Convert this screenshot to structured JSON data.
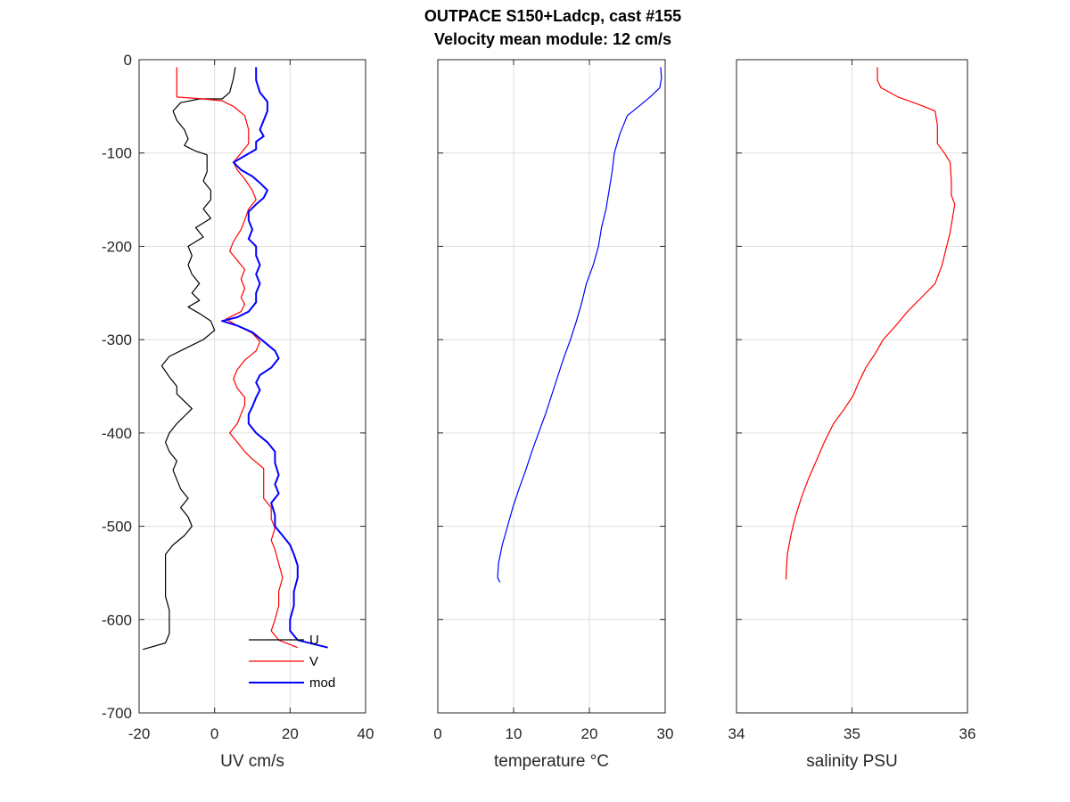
{
  "title": {
    "line1": "OUTPACE S150+Ladcp, cast #155",
    "line2": "Velocity mean module:  12 cm/s"
  },
  "chart_data": [
    {
      "type": "line",
      "xlabel": "UV cm/s",
      "ylabel": "",
      "xlim": [
        -20,
        40
      ],
      "ylim": [
        -700,
        0
      ],
      "xticks": [
        -20,
        0,
        20,
        40
      ],
      "yticks": [
        0,
        -100,
        -200,
        -300,
        -400,
        -500,
        -600,
        -700
      ],
      "grid": true,
      "legend": {
        "position": "bottom-right",
        "entries": [
          "U",
          "V",
          "mod"
        ]
      },
      "series": [
        {
          "name": "U",
          "color": "#000000",
          "width": 1.2,
          "points": [
            [
              5.5,
              -8
            ],
            [
              5,
              -20
            ],
            [
              4,
              -35
            ],
            [
              2,
              -42
            ],
            [
              -4,
              -42
            ],
            [
              -9,
              -46
            ],
            [
              -11,
              -55
            ],
            [
              -10,
              -65
            ],
            [
              -8,
              -75
            ],
            [
              -7,
              -85
            ],
            [
              -8,
              -92
            ],
            [
              -5,
              -98
            ],
            [
              -2,
              -102
            ],
            [
              -2,
              -120
            ],
            [
              -3,
              -130
            ],
            [
              -1,
              -140
            ],
            [
              -1,
              -150
            ],
            [
              -3,
              -160
            ],
            [
              -1,
              -170
            ],
            [
              -5,
              -180
            ],
            [
              -3,
              -190
            ],
            [
              -7,
              -200
            ],
            [
              -6,
              -210
            ],
            [
              -7,
              -220
            ],
            [
              -6,
              -230
            ],
            [
              -4,
              -240
            ],
            [
              -6,
              -250
            ],
            [
              -4,
              -258
            ],
            [
              -7,
              -265
            ],
            [
              -4,
              -272
            ],
            [
              -1,
              -280
            ],
            [
              0,
              -290
            ],
            [
              -3,
              -300
            ],
            [
              -8,
              -310
            ],
            [
              -12,
              -318
            ],
            [
              -14,
              -328
            ],
            [
              -12,
              -340
            ],
            [
              -10,
              -350
            ],
            [
              -10,
              -358
            ],
            [
              -8,
              -366
            ],
            [
              -6,
              -374
            ],
            [
              -8,
              -382
            ],
            [
              -10,
              -390
            ],
            [
              -12,
              -400
            ],
            [
              -13,
              -410
            ],
            [
              -12,
              -420
            ],
            [
              -10,
              -430
            ],
            [
              -11,
              -440
            ],
            [
              -10,
              -450
            ],
            [
              -9,
              -460
            ],
            [
              -7,
              -470
            ],
            [
              -9,
              -480
            ],
            [
              -7,
              -490
            ],
            [
              -6,
              -500
            ],
            [
              -8,
              -510
            ],
            [
              -11,
              -520
            ],
            [
              -13,
              -530
            ],
            [
              -13,
              -545
            ],
            [
              -13,
              -560
            ],
            [
              -13,
              -575
            ],
            [
              -12,
              -590
            ],
            [
              -12,
              -605
            ],
            [
              -12,
              -615
            ],
            [
              -13,
              -625
            ],
            [
              -19,
              -632
            ]
          ]
        },
        {
          "name": "V",
          "color": "#ff0000",
          "width": 1.2,
          "points": [
            [
              -10,
              -8
            ],
            [
              -10,
              -40
            ],
            [
              -3,
              -42
            ],
            [
              2,
              -44
            ],
            [
              5,
              -50
            ],
            [
              8,
              -60
            ],
            [
              9,
              -75
            ],
            [
              9,
              -90
            ],
            [
              7,
              -100
            ],
            [
              5,
              -110
            ],
            [
              6,
              -118
            ],
            [
              8,
              -128
            ],
            [
              10,
              -140
            ],
            [
              11,
              -150
            ],
            [
              9,
              -160
            ],
            [
              8,
              -172
            ],
            [
              7,
              -182
            ],
            [
              5,
              -195
            ],
            [
              4,
              -205
            ],
            [
              6,
              -215
            ],
            [
              8,
              -225
            ],
            [
              7,
              -235
            ],
            [
              8,
              -245
            ],
            [
              7,
              -255
            ],
            [
              8,
              -262
            ],
            [
              7,
              -270
            ],
            [
              3,
              -278
            ],
            [
              6,
              -285
            ],
            [
              10,
              -293
            ],
            [
              12,
              -302
            ],
            [
              11,
              -312
            ],
            [
              8,
              -322
            ],
            [
              6,
              -332
            ],
            [
              5,
              -342
            ],
            [
              6,
              -352
            ],
            [
              8,
              -362
            ],
            [
              8,
              -370
            ],
            [
              7,
              -380
            ],
            [
              6,
              -390
            ],
            [
              4,
              -400
            ],
            [
              6,
              -410
            ],
            [
              8,
              -420
            ],
            [
              10,
              -428
            ],
            [
              13,
              -438
            ],
            [
              13,
              -450
            ],
            [
              13,
              -462
            ],
            [
              13,
              -470
            ],
            [
              15,
              -480
            ],
            [
              15,
              -492
            ],
            [
              16,
              -502
            ],
            [
              15,
              -515
            ],
            [
              16,
              -525
            ],
            [
              17,
              -540
            ],
            [
              18,
              -555
            ],
            [
              17,
              -570
            ],
            [
              17,
              -585
            ],
            [
              16,
              -600
            ],
            [
              15,
              -612
            ],
            [
              17,
              -622
            ],
            [
              22,
              -630
            ]
          ]
        },
        {
          "name": "mod",
          "color": "#0000ff",
          "width": 2,
          "points": [
            [
              11,
              -8
            ],
            [
              11,
              -22
            ],
            [
              12,
              -35
            ],
            [
              14,
              -45
            ],
            [
              14,
              -55
            ],
            [
              13,
              -65
            ],
            [
              12,
              -75
            ],
            [
              13,
              -82
            ],
            [
              11,
              -88
            ],
            [
              11,
              -96
            ],
            [
              8,
              -103
            ],
            [
              5,
              -110
            ],
            [
              7,
              -118
            ],
            [
              10,
              -125
            ],
            [
              12,
              -132
            ],
            [
              14,
              -140
            ],
            [
              13,
              -148
            ],
            [
              11,
              -155
            ],
            [
              9,
              -163
            ],
            [
              9,
              -172
            ],
            [
              10,
              -182
            ],
            [
              9,
              -192
            ],
            [
              11,
              -200
            ],
            [
              11,
              -210
            ],
            [
              12,
              -220
            ],
            [
              11,
              -230
            ],
            [
              12,
              -240
            ],
            [
              11,
              -250
            ],
            [
              11,
              -260
            ],
            [
              9,
              -270
            ],
            [
              6,
              -276
            ],
            [
              2,
              -280
            ],
            [
              6,
              -285
            ],
            [
              10,
              -292
            ],
            [
              13,
              -302
            ],
            [
              16,
              -312
            ],
            [
              17,
              -320
            ],
            [
              15,
              -330
            ],
            [
              12,
              -338
            ],
            [
              11,
              -346
            ],
            [
              12,
              -354
            ],
            [
              11,
              -362
            ],
            [
              10,
              -372
            ],
            [
              9,
              -380
            ],
            [
              9,
              -390
            ],
            [
              11,
              -400
            ],
            [
              14,
              -410
            ],
            [
              16,
              -420
            ],
            [
              16,
              -432
            ],
            [
              17,
              -445
            ],
            [
              16,
              -455
            ],
            [
              17,
              -465
            ],
            [
              15,
              -475
            ],
            [
              16,
              -488
            ],
            [
              16,
              -500
            ],
            [
              18,
              -510
            ],
            [
              20,
              -520
            ],
            [
              21,
              -530
            ],
            [
              22,
              -542
            ],
            [
              22,
              -555
            ],
            [
              21,
              -570
            ],
            [
              21,
              -585
            ],
            [
              20,
              -600
            ],
            [
              20,
              -612
            ],
            [
              22,
              -622
            ],
            [
              30,
              -630
            ]
          ]
        }
      ]
    },
    {
      "type": "line",
      "xlabel": "temperature °C",
      "ylabel": "",
      "xlim": [
        0,
        30
      ],
      "ylim": [
        -700,
        0
      ],
      "xticks": [
        0,
        10,
        20,
        30
      ],
      "yticks": [
        0,
        -100,
        -200,
        -300,
        -400,
        -500,
        -600,
        -700
      ],
      "grid": true,
      "series": [
        {
          "color": "#0000ff",
          "width": 1.2,
          "points": [
            [
              29.4,
              -8
            ],
            [
              29.5,
              -20
            ],
            [
              29.3,
              -30
            ],
            [
              28,
              -40
            ],
            [
              26.5,
              -50
            ],
            [
              25,
              -60
            ],
            [
              24,
              -80
            ],
            [
              23.3,
              -100
            ],
            [
              23,
              -120
            ],
            [
              22.6,
              -140
            ],
            [
              22.2,
              -160
            ],
            [
              21.6,
              -180
            ],
            [
              21.2,
              -200
            ],
            [
              20.5,
              -220
            ],
            [
              19.6,
              -240
            ],
            [
              19,
              -260
            ],
            [
              18.3,
              -280
            ],
            [
              17.5,
              -300
            ],
            [
              16.6,
              -320
            ],
            [
              15.8,
              -340
            ],
            [
              15,
              -360
            ],
            [
              14.2,
              -380
            ],
            [
              13.3,
              -400
            ],
            [
              12.4,
              -420
            ],
            [
              11.6,
              -440
            ],
            [
              10.7,
              -460
            ],
            [
              9.9,
              -480
            ],
            [
              9.2,
              -500
            ],
            [
              8.5,
              -520
            ],
            [
              8,
              -540
            ],
            [
              7.9,
              -555
            ],
            [
              8.2,
              -560
            ]
          ]
        }
      ]
    },
    {
      "type": "line",
      "xlabel": "salinity PSU",
      "ylabel": "",
      "xlim": [
        34,
        36
      ],
      "ylim": [
        -700,
        0
      ],
      "xticks": [
        34,
        35,
        36
      ],
      "yticks": [
        0,
        -100,
        -200,
        -300,
        -400,
        -500,
        -600,
        -700
      ],
      "grid": true,
      "series": [
        {
          "color": "#ff0000",
          "width": 1.2,
          "points": [
            [
              35.22,
              -8
            ],
            [
              35.22,
              -22
            ],
            [
              35.25,
              -30
            ],
            [
              35.4,
              -40
            ],
            [
              35.58,
              -48
            ],
            [
              35.72,
              -55
            ],
            [
              35.74,
              -70
            ],
            [
              35.74,
              -90
            ],
            [
              35.8,
              -100
            ],
            [
              35.85,
              -110
            ],
            [
              35.86,
              -130
            ],
            [
              35.86,
              -145
            ],
            [
              35.89,
              -155
            ],
            [
              35.87,
              -170
            ],
            [
              35.85,
              -185
            ],
            [
              35.82,
              -200
            ],
            [
              35.78,
              -220
            ],
            [
              35.72,
              -240
            ],
            [
              35.6,
              -255
            ],
            [
              35.48,
              -270
            ],
            [
              35.38,
              -285
            ],
            [
              35.27,
              -300
            ],
            [
              35.2,
              -315
            ],
            [
              35.12,
              -330
            ],
            [
              35.06,
              -345
            ],
            [
              35.01,
              -360
            ],
            [
              34.93,
              -375
            ],
            [
              34.84,
              -390
            ],
            [
              34.76,
              -410
            ],
            [
              34.69,
              -430
            ],
            [
              34.62,
              -450
            ],
            [
              34.56,
              -470
            ],
            [
              34.51,
              -490
            ],
            [
              34.47,
              -510
            ],
            [
              34.44,
              -530
            ],
            [
              34.43,
              -550
            ],
            [
              34.43,
              -557
            ]
          ]
        }
      ]
    }
  ]
}
